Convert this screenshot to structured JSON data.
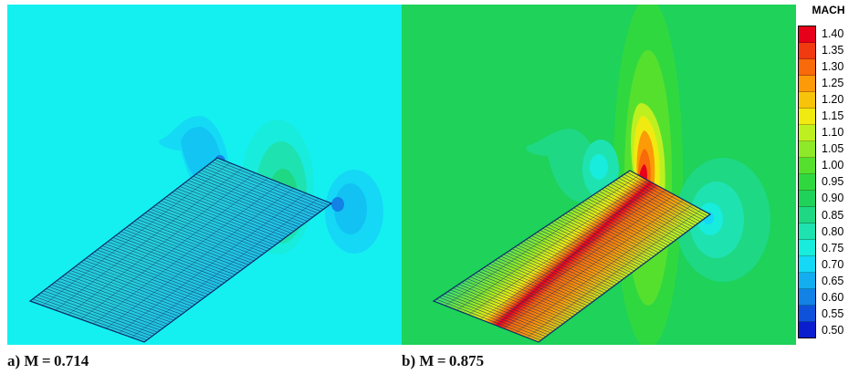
{
  "panels": [
    {
      "id": "a",
      "caption": "a) M = 0.714",
      "background": "#14f0f0"
    },
    {
      "id": "b",
      "caption": "b) M = 0.875",
      "background": "#1ed25a"
    }
  ],
  "legend": {
    "title": "MACH",
    "levels": [
      {
        "label": "1.40",
        "color": "#e8001a"
      },
      {
        "label": "1.35",
        "color": "#f23a10"
      },
      {
        "label": "1.30",
        "color": "#f86a0a"
      },
      {
        "label": "1.25",
        "color": "#fc9a08"
      },
      {
        "label": "1.20",
        "color": "#f8c40a"
      },
      {
        "label": "1.15",
        "color": "#f0ea10"
      },
      {
        "label": "1.10",
        "color": "#bef020"
      },
      {
        "label": "1.05",
        "color": "#8eea28"
      },
      {
        "label": "1.00",
        "color": "#56e02e"
      },
      {
        "label": "0.95",
        "color": "#30d840"
      },
      {
        "label": "0.90",
        "color": "#1ed25a"
      },
      {
        "label": "0.85",
        "color": "#1ed884"
      },
      {
        "label": "0.80",
        "color": "#1ee2b0"
      },
      {
        "label": "0.75",
        "color": "#18ecdc"
      },
      {
        "label": "0.70",
        "color": "#14d8f6"
      },
      {
        "label": "0.65",
        "color": "#12aef0"
      },
      {
        "label": "0.60",
        "color": "#1282e6"
      },
      {
        "label": "0.55",
        "color": "#0e52dc"
      },
      {
        "label": "0.50",
        "color": "#0a1ed0"
      }
    ]
  }
}
